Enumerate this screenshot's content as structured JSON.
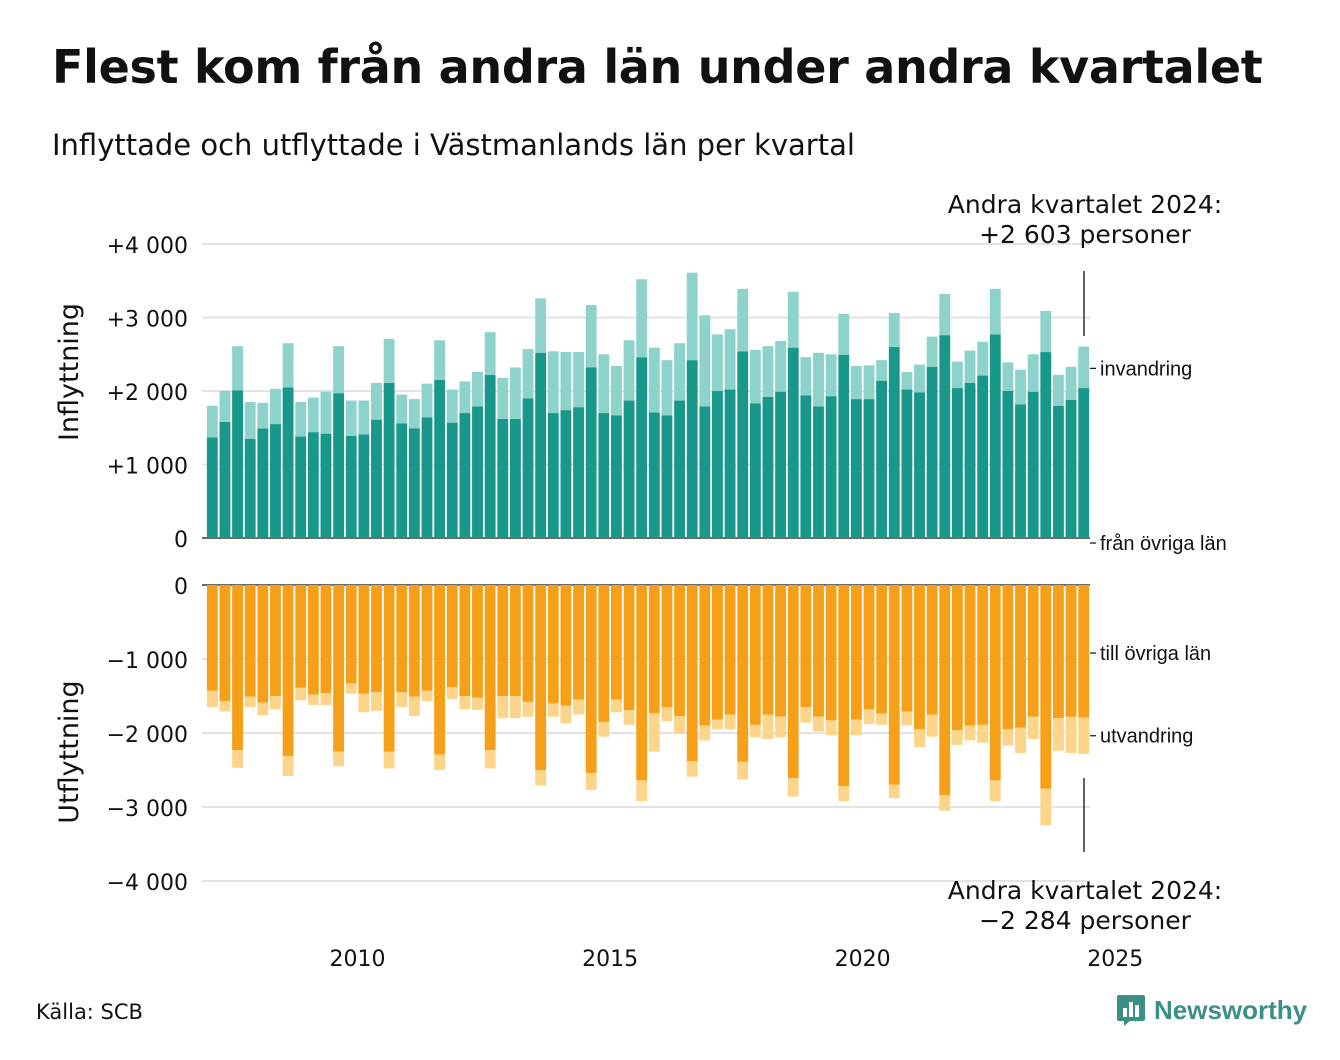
{
  "title": "Flest kom från andra län under andra kvartalet",
  "subtitle": "Inflyttade och utflyttade i Västmanlands län per kvartal",
  "source": "Källa: SCB",
  "brand": "Newsworthy",
  "colors": {
    "in_domestic": "#18988b",
    "in_immigration": "#8dd3cb",
    "out_domestic": "#f6a01a",
    "out_emigration": "#fcd48a",
    "grid": "#e3e3e3",
    "brand": "#3a8f86"
  },
  "chart_data": [
    {
      "type": "bar",
      "stacked": true,
      "ylabel": "Inflyttning",
      "ylim": [
        0,
        4000
      ],
      "yticks": [
        0,
        1000,
        2000,
        3000,
        4000
      ],
      "ytick_labels": [
        "0",
        "+1 000",
        "+2 000",
        "+3 000",
        "+4 000"
      ],
      "x_start": "2007 Q1",
      "x_end": "2024 Q2",
      "xticks": [
        2010,
        2015,
        2020,
        2025
      ],
      "xtick_labels": [
        "2010",
        "2015",
        "2020",
        "2025"
      ],
      "annotation": [
        "Andra kvartalet 2024:",
        "+2 603 personer"
      ],
      "series": [
        {
          "name": "från övriga län",
          "values": [
            1370,
            1580,
            2010,
            1350,
            1490,
            1550,
            2050,
            1380,
            1440,
            1420,
            1970,
            1390,
            1410,
            1610,
            2110,
            1560,
            1490,
            1640,
            2150,
            1570,
            1700,
            1790,
            2220,
            1620,
            1620,
            1900,
            2520,
            1700,
            1740,
            1780,
            2320,
            1700,
            1670,
            1870,
            2460,
            1710,
            1670,
            1870,
            2420,
            1790,
            2000,
            2020,
            2540,
            1830,
            1920,
            1990,
            2590,
            1940,
            1790,
            1930,
            2490,
            1890,
            1890,
            2140,
            2600,
            2020,
            1980,
            2330,
            2760,
            2040,
            2110,
            2210,
            2770,
            2000,
            1820,
            1990,
            2530,
            1800,
            1880,
            2040
          ]
        },
        {
          "name": "invandring",
          "values": [
            430,
            420,
            600,
            500,
            350,
            480,
            600,
            470,
            470,
            570,
            640,
            480,
            460,
            500,
            600,
            390,
            400,
            460,
            540,
            450,
            430,
            470,
            580,
            560,
            700,
            670,
            740,
            840,
            790,
            750,
            850,
            800,
            670,
            820,
            1060,
            880,
            750,
            780,
            1190,
            1240,
            770,
            820,
            850,
            730,
            690,
            690,
            760,
            520,
            730,
            570,
            560,
            450,
            460,
            280,
            460,
            240,
            380,
            410,
            560,
            360,
            440,
            460,
            620,
            390,
            470,
            510,
            560,
            420,
            450,
            563
          ]
        }
      ]
    },
    {
      "type": "bar",
      "stacked": true,
      "ylabel": "Utflyttning",
      "ylim": [
        -4000,
        0
      ],
      "yticks": [
        0,
        -1000,
        -2000,
        -3000,
        -4000
      ],
      "ytick_labels": [
        "0",
        "−1 000",
        "−2 000",
        "−3 000",
        "−4 000"
      ],
      "x_start": "2007 Q1",
      "x_end": "2024 Q2",
      "xticks": [
        2010,
        2015,
        2020,
        2025
      ],
      "xtick_labels": [
        "2010",
        "2015",
        "2020",
        "2025"
      ],
      "annotation": [
        "Andra kvartalet 2024:",
        "−2 284 personer"
      ],
      "series": [
        {
          "name": "till övriga län",
          "values": [
            -1430,
            -1570,
            -2230,
            -1510,
            -1590,
            -1500,
            -2310,
            -1390,
            -1480,
            -1460,
            -2250,
            -1330,
            -1470,
            -1450,
            -2250,
            -1450,
            -1510,
            -1430,
            -2290,
            -1380,
            -1500,
            -1520,
            -2230,
            -1500,
            -1500,
            -1580,
            -2500,
            -1600,
            -1630,
            -1550,
            -2540,
            -1850,
            -1550,
            -1690,
            -2640,
            -1730,
            -1650,
            -1770,
            -2380,
            -1900,
            -1820,
            -1750,
            -2390,
            -1890,
            -1750,
            -1780,
            -2610,
            -1650,
            -1780,
            -1830,
            -2720,
            -1820,
            -1680,
            -1740,
            -2700,
            -1710,
            -1950,
            -1750,
            -2840,
            -1960,
            -1900,
            -1890,
            -2640,
            -1950,
            -1930,
            -1780,
            -2750,
            -1800,
            -1780,
            -1790
          ]
        },
        {
          "name": "utvandring",
          "values": [
            -220,
            -140,
            -240,
            -140,
            -170,
            -180,
            -270,
            -170,
            -140,
            -160,
            -200,
            -140,
            -250,
            -250,
            -230,
            -200,
            -260,
            -140,
            -210,
            -160,
            -180,
            -170,
            -250,
            -300,
            -300,
            -200,
            -210,
            -180,
            -240,
            -200,
            -230,
            -200,
            -170,
            -200,
            -280,
            -520,
            -190,
            -240,
            -210,
            -200,
            -130,
            -200,
            -240,
            -170,
            -330,
            -280,
            -250,
            -210,
            -200,
            -200,
            -200,
            -210,
            -200,
            -150,
            -180,
            -190,
            -240,
            -300,
            -210,
            -200,
            -200,
            -240,
            -280,
            -220,
            -340,
            -300,
            -500,
            -440,
            -490,
            -494
          ]
        }
      ]
    }
  ]
}
